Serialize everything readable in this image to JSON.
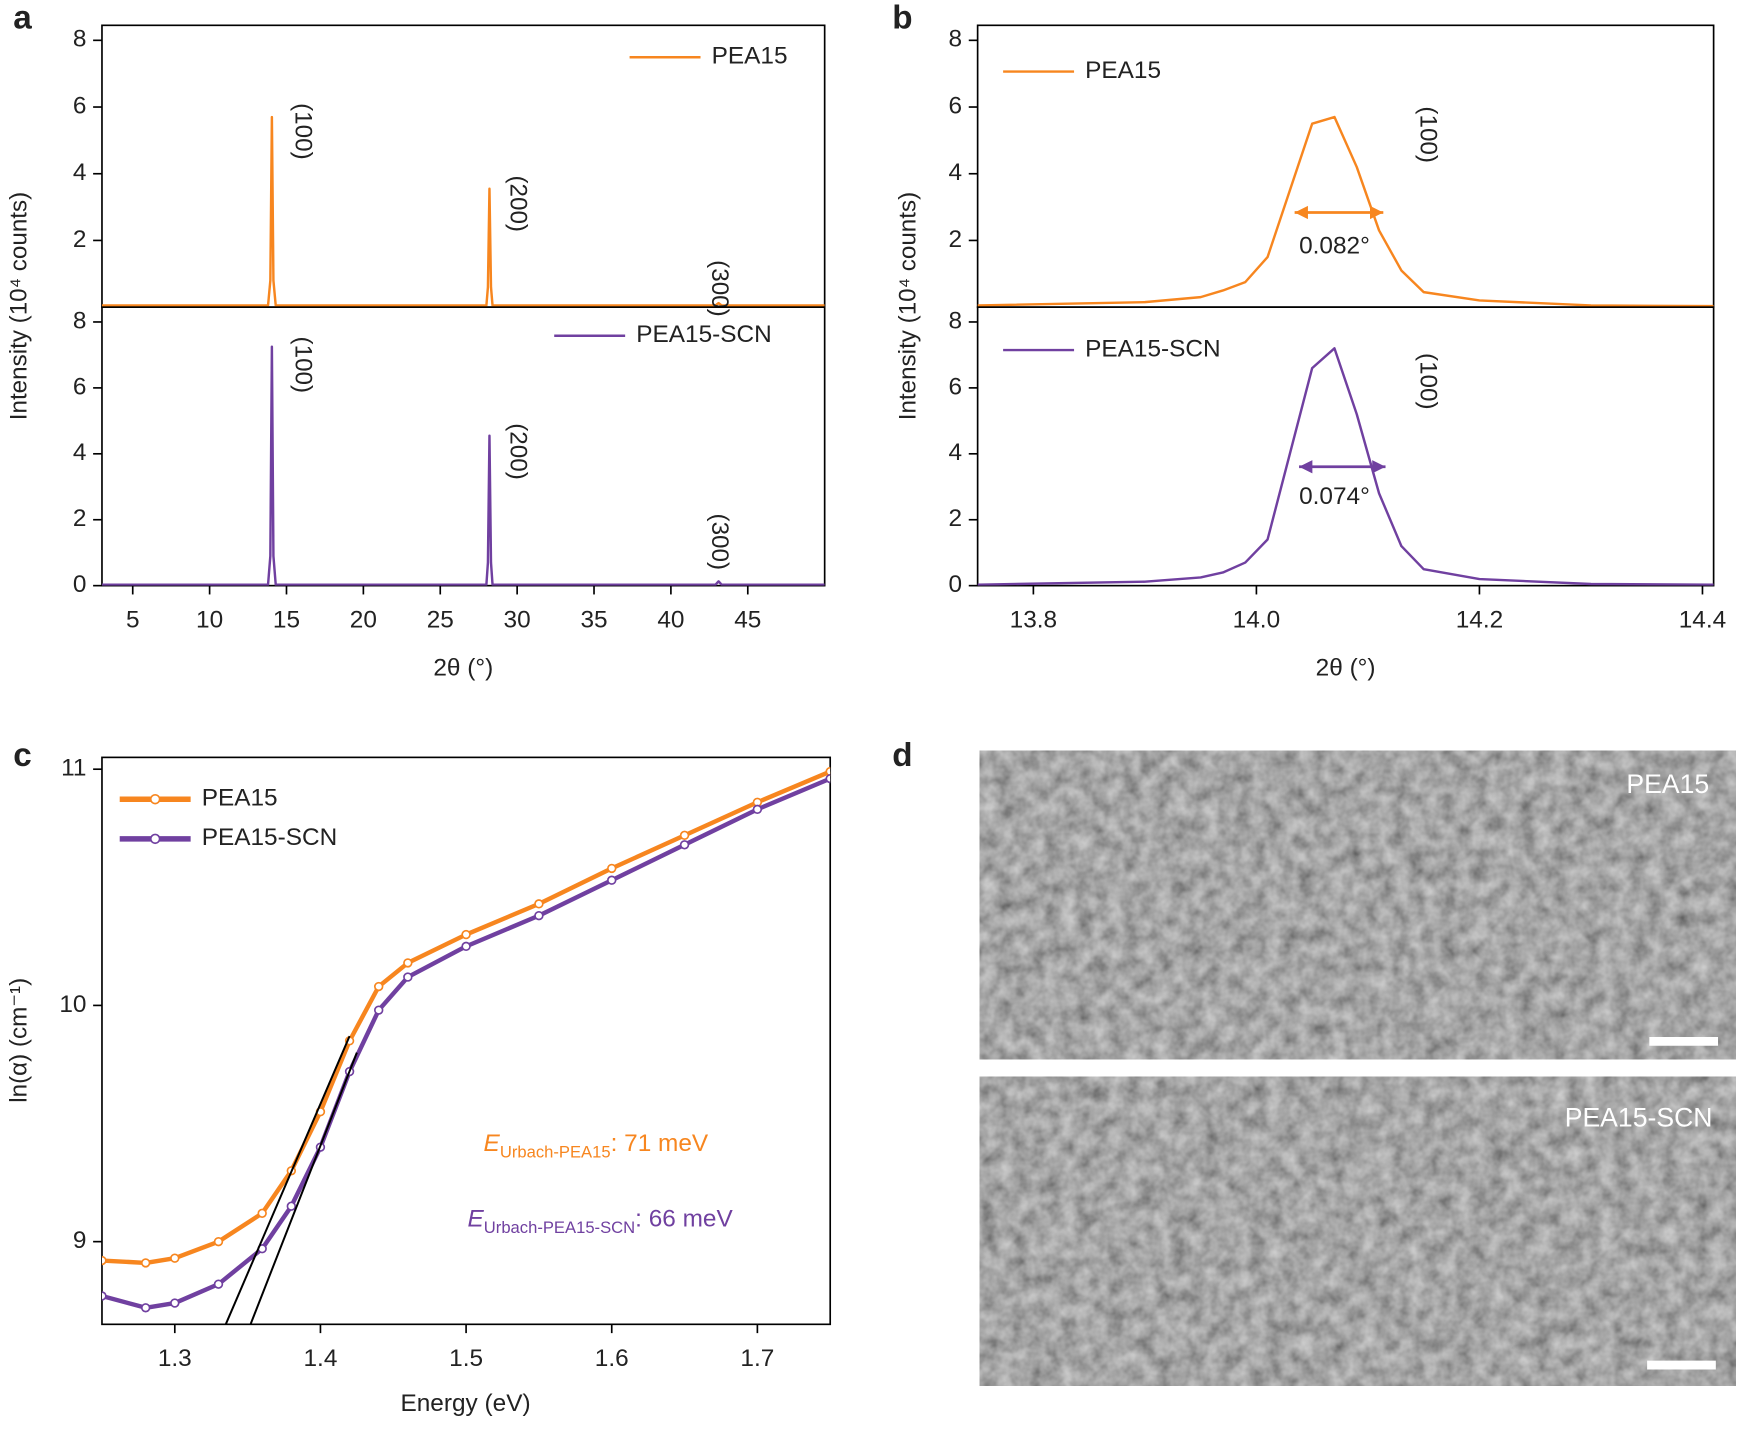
{
  "panel_labels": [
    "a",
    "b",
    "c",
    "d"
  ],
  "images": [
    {
      "label": "PEA15"
    },
    {
      "label": "PEA15-SCN"
    }
  ],
  "chart_data": [
    {
      "type": "line",
      "ylabel": "Intensity (10⁴ counts)",
      "xlim": [
        3,
        50
      ],
      "ylim": [
        0,
        8.45
      ],
      "yticks": [
        2,
        4,
        6,
        8
      ],
      "series": [
        {
          "name": "PEA15",
          "color": "#f7861f",
          "x": [
            3,
            13.8,
            13.95,
            14.05,
            14.15,
            14.3,
            28.0,
            28.1,
            28.2,
            28.3,
            28.4,
            42.9,
            43.1,
            43.3,
            50
          ],
          "values": [
            0.05,
            0.05,
            0.8,
            5.7,
            0.8,
            0.05,
            0.05,
            0.6,
            3.55,
            0.6,
            0.05,
            0.05,
            0.12,
            0.05,
            0.05
          ]
        }
      ],
      "annotations": [
        {
          "text": "(100)",
          "x": 16.0,
          "y": 5.27,
          "rotate": 90
        },
        {
          "text": "(200)",
          "x": 30.0,
          "y": 3.1,
          "rotate": 90
        },
        {
          "text": "(300)",
          "x": 43.1,
          "y": 0.56,
          "rotate": 90
        }
      ]
    },
    {
      "type": "line",
      "xlabel": "2θ (°)",
      "xlim": [
        3,
        50
      ],
      "ylim": [
        0,
        8.45
      ],
      "xticks": [
        5,
        10,
        15,
        20,
        25,
        30,
        35,
        40,
        45
      ],
      "yticks": [
        0,
        2,
        4,
        6,
        8
      ],
      "series": [
        {
          "name": "PEA15-SCN",
          "color": "#7040a0",
          "x": [
            3,
            13.8,
            13.95,
            14.05,
            14.15,
            14.3,
            28.0,
            28.1,
            28.2,
            28.3,
            28.4,
            42.9,
            43.1,
            43.3,
            50
          ],
          "values": [
            0.03,
            0.03,
            0.9,
            7.25,
            0.9,
            0.03,
            0.03,
            0.7,
            4.55,
            0.7,
            0.03,
            0.03,
            0.13,
            0.03,
            0.03
          ]
        }
      ],
      "annotations": [
        {
          "text": "(100)",
          "x": 16.0,
          "y": 6.7,
          "rotate": 90
        },
        {
          "text": "(200)",
          "x": 30.0,
          "y": 4.07,
          "rotate": 90
        },
        {
          "text": "(300)",
          "x": 43.1,
          "y": 1.33,
          "rotate": 90
        }
      ]
    },
    {
      "type": "line",
      "ylabel": "Intensity (10⁴ counts)",
      "xlim": [
        13.75,
        14.41
      ],
      "ylim": [
        0,
        8.45
      ],
      "yticks": [
        2,
        4,
        6,
        8
      ],
      "series": [
        {
          "name": "PEA15",
          "color": "#f7861f",
          "x": [
            13.75,
            13.9,
            13.95,
            13.97,
            13.99,
            14.01,
            14.03,
            14.05,
            14.07,
            14.09,
            14.11,
            14.13,
            14.15,
            14.2,
            14.3,
            14.41
          ],
          "values": [
            0.05,
            0.15,
            0.3,
            0.5,
            0.75,
            1.5,
            3.5,
            5.5,
            5.7,
            4.2,
            2.3,
            1.1,
            0.45,
            0.2,
            0.05,
            0.03
          ]
        }
      ],
      "annotations": [
        {
          "text": "(100)",
          "x": 14.153,
          "y": 5.17,
          "rotate": 90
        },
        {
          "text": "0.082°",
          "x": 14.07,
          "y": 1.8,
          "rotate": 0
        }
      ]
    },
    {
      "type": "line",
      "xlabel": "2θ (°)",
      "xlim": [
        13.75,
        14.41
      ],
      "ylim": [
        0,
        8.45
      ],
      "xticks": [
        13.8,
        {
          "value": 14,
          "label": "14.0"
        },
        14.2,
        14.4
      ],
      "yticks": [
        0,
        2,
        4,
        6,
        8
      ],
      "series": [
        {
          "name": "PEA15-SCN",
          "color": "#7040a0",
          "x": [
            13.75,
            13.9,
            13.95,
            13.97,
            13.99,
            14.01,
            14.03,
            14.05,
            14.07,
            14.09,
            14.11,
            14.13,
            14.15,
            14.2,
            14.3,
            14.41
          ],
          "values": [
            0.03,
            0.12,
            0.25,
            0.4,
            0.7,
            1.4,
            4.0,
            6.6,
            7.2,
            5.2,
            2.8,
            1.2,
            0.5,
            0.2,
            0.05,
            0.03
          ]
        }
      ],
      "annotations": [
        {
          "text": "(100)",
          "x": 14.153,
          "y": 6.2,
          "rotate": 90
        },
        {
          "text": "0.074°",
          "x": 14.07,
          "y": 2.67,
          "rotate": 0
        }
      ]
    },
    {
      "type": "line",
      "xlabel": "Energy (eV)",
      "ylabel": "ln(α) (cm⁻¹)",
      "xlim": [
        1.25,
        1.75
      ],
      "ylim": [
        8.65,
        11.05
      ],
      "xticks": [
        1.3,
        1.4,
        1.5,
        1.6,
        1.7
      ],
      "yticks": [
        9,
        10,
        11
      ],
      "series": [
        {
          "name": "PEA15",
          "color": "#f7861f",
          "x": [
            1.25,
            1.28,
            1.3,
            1.33,
            1.36,
            1.38,
            1.4,
            1.42,
            1.44,
            1.46,
            1.5,
            1.55,
            1.6,
            1.65,
            1.7,
            1.75
          ],
          "values": [
            8.92,
            8.91,
            8.93,
            9.0,
            9.12,
            9.3,
            9.55,
            9.85,
            10.08,
            10.18,
            10.3,
            10.43,
            10.58,
            10.72,
            10.86,
            10.99
          ]
        },
        {
          "name": "PEA15-SCN",
          "color": "#7040a0",
          "x": [
            1.25,
            1.28,
            1.3,
            1.33,
            1.36,
            1.38,
            1.4,
            1.42,
            1.44,
            1.46,
            1.5,
            1.55,
            1.6,
            1.65,
            1.7,
            1.75
          ],
          "values": [
            8.77,
            8.72,
            8.74,
            8.82,
            8.97,
            9.15,
            9.4,
            9.72,
            9.98,
            10.12,
            10.25,
            10.38,
            10.53,
            10.68,
            10.83,
            10.96
          ]
        }
      ],
      "fits": [
        {
          "color": "#000000",
          "x": [
            1.335,
            1.42
          ],
          "values": [
            8.65,
            9.87
          ]
        },
        {
          "color": "#000000",
          "x": [
            1.352,
            1.425
          ],
          "values": [
            8.65,
            9.8
          ]
        }
      ],
      "annotations": [
        {
          "symbol": "E",
          "subscript": "Urbach-PEA15",
          "text": ": 71 meV",
          "color": "#f7861f",
          "x": 1.512,
          "y": 9.41
        },
        {
          "symbol": "E",
          "subscript": "Urbach-PEA15-SCN",
          "text": ": 66 meV",
          "color": "#7040a0",
          "x": 1.501,
          "y": 9.09
        }
      ]
    }
  ]
}
